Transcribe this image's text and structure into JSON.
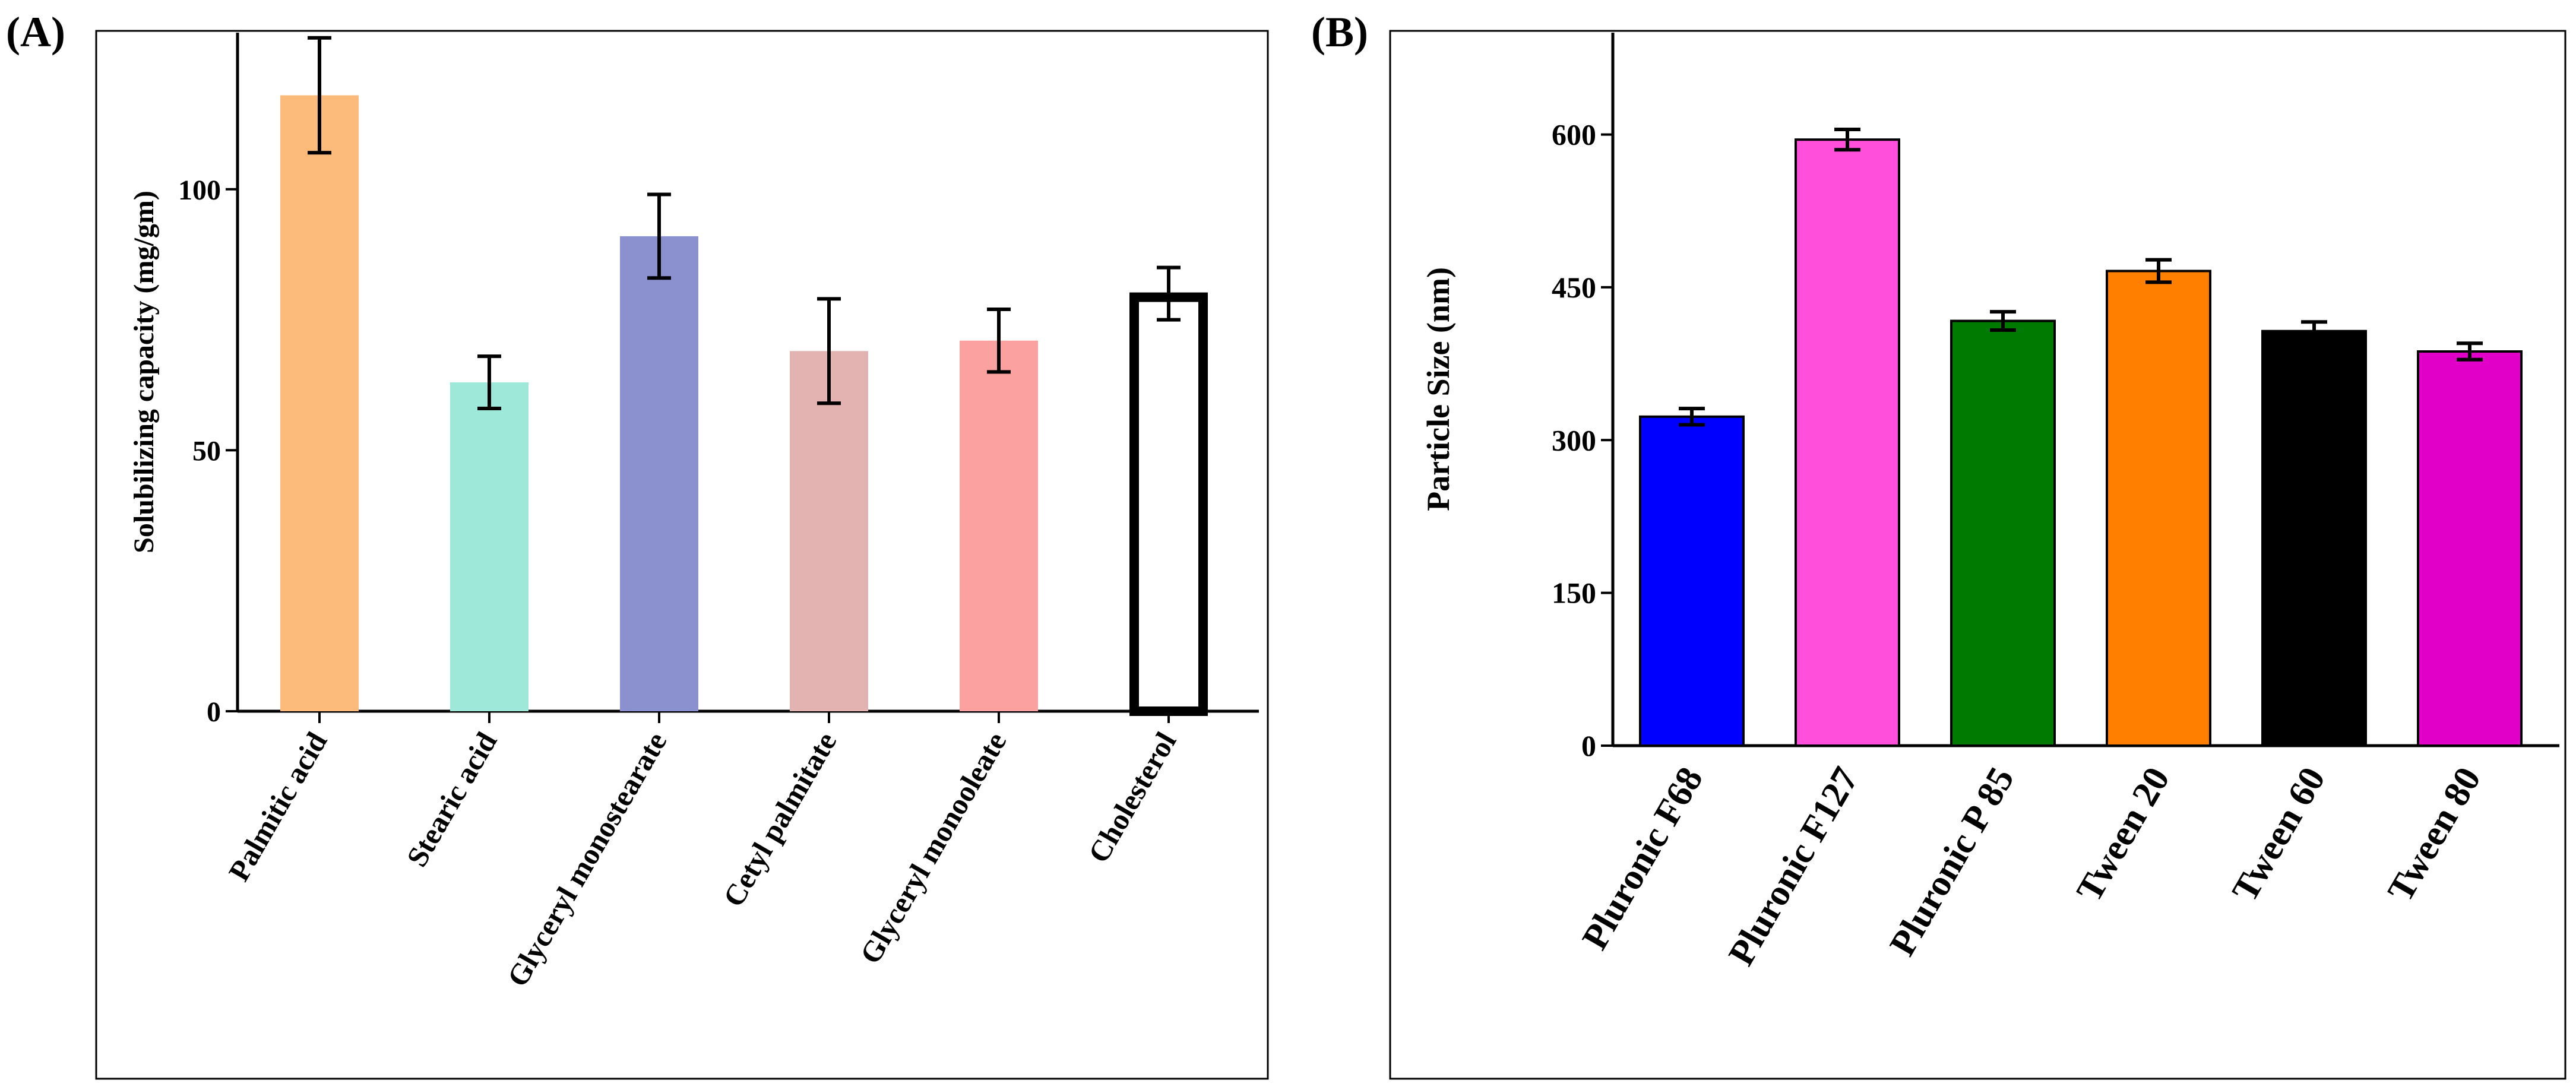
{
  "panels": [
    {
      "panel_label": "(A)",
      "chart_data": {
        "type": "bar",
        "title": "",
        "xlabel": "",
        "ylabel": "Solubilizing capacity (mg/gm)",
        "ylim": [
          0,
          130
        ],
        "yticks": [
          0,
          50,
          100
        ],
        "categories": [
          "Palmitic acid",
          "Stearic acid",
          "Glyceryl monostearate",
          "Cetyl palmitate",
          "Glyceryl monooleate",
          "Cholesterol"
        ],
        "values": [
          118,
          63,
          91,
          69,
          71,
          80
        ],
        "errors": [
          11,
          5,
          8,
          10,
          6,
          5
        ],
        "colors": [
          "#fdbb7b",
          "#9de8d8",
          "#8b90cf",
          "#e2b3b0",
          "#fba2a1",
          "#ffffff"
        ],
        "bar_styles": [
          "filled",
          "filled",
          "filled",
          "filled",
          "filled",
          "outline"
        ]
      }
    },
    {
      "panel_label": "(B)",
      "chart_data": {
        "type": "bar",
        "title": "",
        "xlabel": "",
        "ylabel": "Particle Size (nm)",
        "ylim": [
          0,
          700
        ],
        "yticks": [
          0,
          150,
          300,
          450,
          600
        ],
        "categories": [
          "Pluronic F68",
          "Pluronic F127",
          "Pluronic P 85",
          "Tween 20",
          "Tween 60",
          "Tween 80"
        ],
        "values": [
          323,
          595,
          417,
          466,
          407,
          387
        ],
        "errors": [
          8,
          10,
          9,
          11,
          9,
          8
        ],
        "colors": [
          "#0000ff",
          "#ff4fdb",
          "#007a00",
          "#ff8000",
          "#000000",
          "#e000c8"
        ],
        "bar_styles": [
          "bordered",
          "bordered",
          "bordered",
          "bordered",
          "bordered",
          "bordered"
        ]
      }
    }
  ]
}
